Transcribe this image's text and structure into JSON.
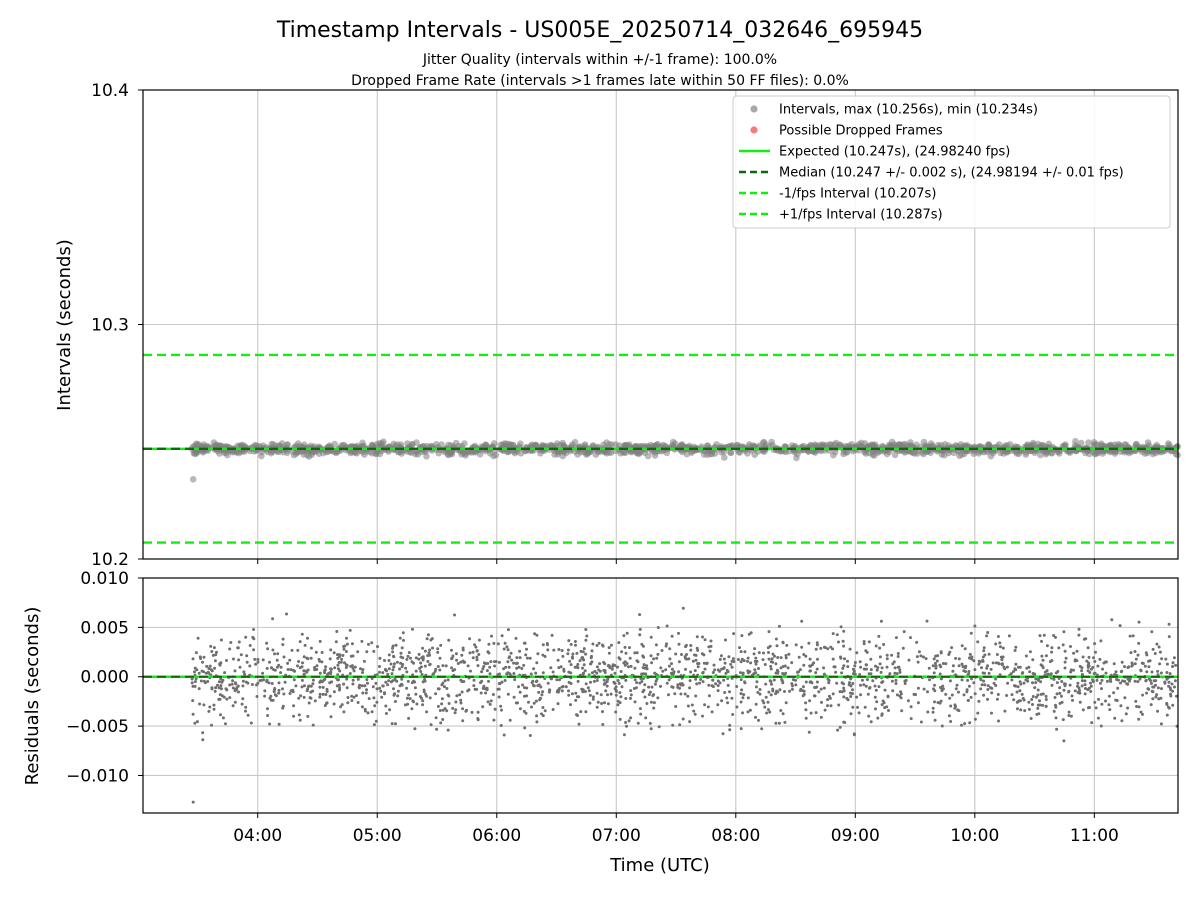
{
  "chart_data": {
    "title": "Timestamp Intervals - US005E_20250714_032646_695945",
    "subtitle_1": "Jitter Quality (intervals within +/-1 frame): 100.0%",
    "subtitle_2": "Dropped Frame Rate (intervals >1 frames late within 50 FF files): 0.0%",
    "xlabel": "Time (UTC)",
    "x_ticks": [
      "04:00",
      "05:00",
      "06:00",
      "07:00",
      "08:00",
      "09:00",
      "10:00",
      "11:00"
    ],
    "x_tick_hours": [
      4,
      5,
      6,
      7,
      8,
      9,
      10,
      11
    ],
    "x_range_hours": [
      3.04,
      11.7
    ],
    "data_start_hour": 3.45,
    "data_end_hour": 11.7,
    "grid": true,
    "legend_position": "top-right",
    "panels": [
      {
        "type": "scatter",
        "ylabel": "Intervals (seconds)",
        "ylim": [
          10.2,
          10.4
        ],
        "y_ticks": [
          "10.2",
          "10.3",
          "10.4"
        ],
        "y_tick_values": [
          10.2,
          10.3,
          10.4
        ],
        "interval_stats": {
          "expected": 10.247,
          "median": 10.247,
          "spread": 0.0022,
          "max": 10.256,
          "min": 10.234
        },
        "lines": {
          "expected": 10.247,
          "median": 10.247,
          "minus_1_fps": 10.207,
          "plus_1_fps": 10.287
        },
        "legend": [
          {
            "label": "Intervals, max (10.256s), min (10.234s)",
            "kind": "marker",
            "color": "#999999"
          },
          {
            "label": "Possible Dropped Frames",
            "kind": "marker",
            "color": "#ee6666"
          },
          {
            "label": "Expected (10.247s), (24.98240 fps)",
            "kind": "solid",
            "color": "#11ee11"
          },
          {
            "label": "Median (10.247 +/- 0.002 s), (24.98194 +/- 0.01 fps)",
            "kind": "dashed",
            "color": "#116611"
          },
          {
            "label": "-1/fps Interval (10.207s)",
            "kind": "dashed",
            "color": "#11ee11"
          },
          {
            "label": "+1/fps Interval (10.287s)",
            "kind": "dashed",
            "color": "#11ee11"
          }
        ]
      },
      {
        "type": "scatter",
        "ylabel": "Residuals (seconds)",
        "ylim": [
          -0.0138,
          0.01
        ],
        "y_ticks": [
          "0.010",
          "0.005",
          "0.000",
          "−0.005",
          "−0.010"
        ],
        "y_tick_values": [
          0.01,
          0.005,
          0.0,
          -0.005,
          -0.01
        ],
        "zero_line": 0.0,
        "residual_spread": 0.0022
      }
    ],
    "colors": {
      "points": "#808080",
      "points_top": "#8c8c8c",
      "expected": "#11ee11",
      "median": "#116611",
      "fps_bounds": "#11ee11",
      "dropped": "#ee6666",
      "grid": "#c8c8c8"
    }
  }
}
